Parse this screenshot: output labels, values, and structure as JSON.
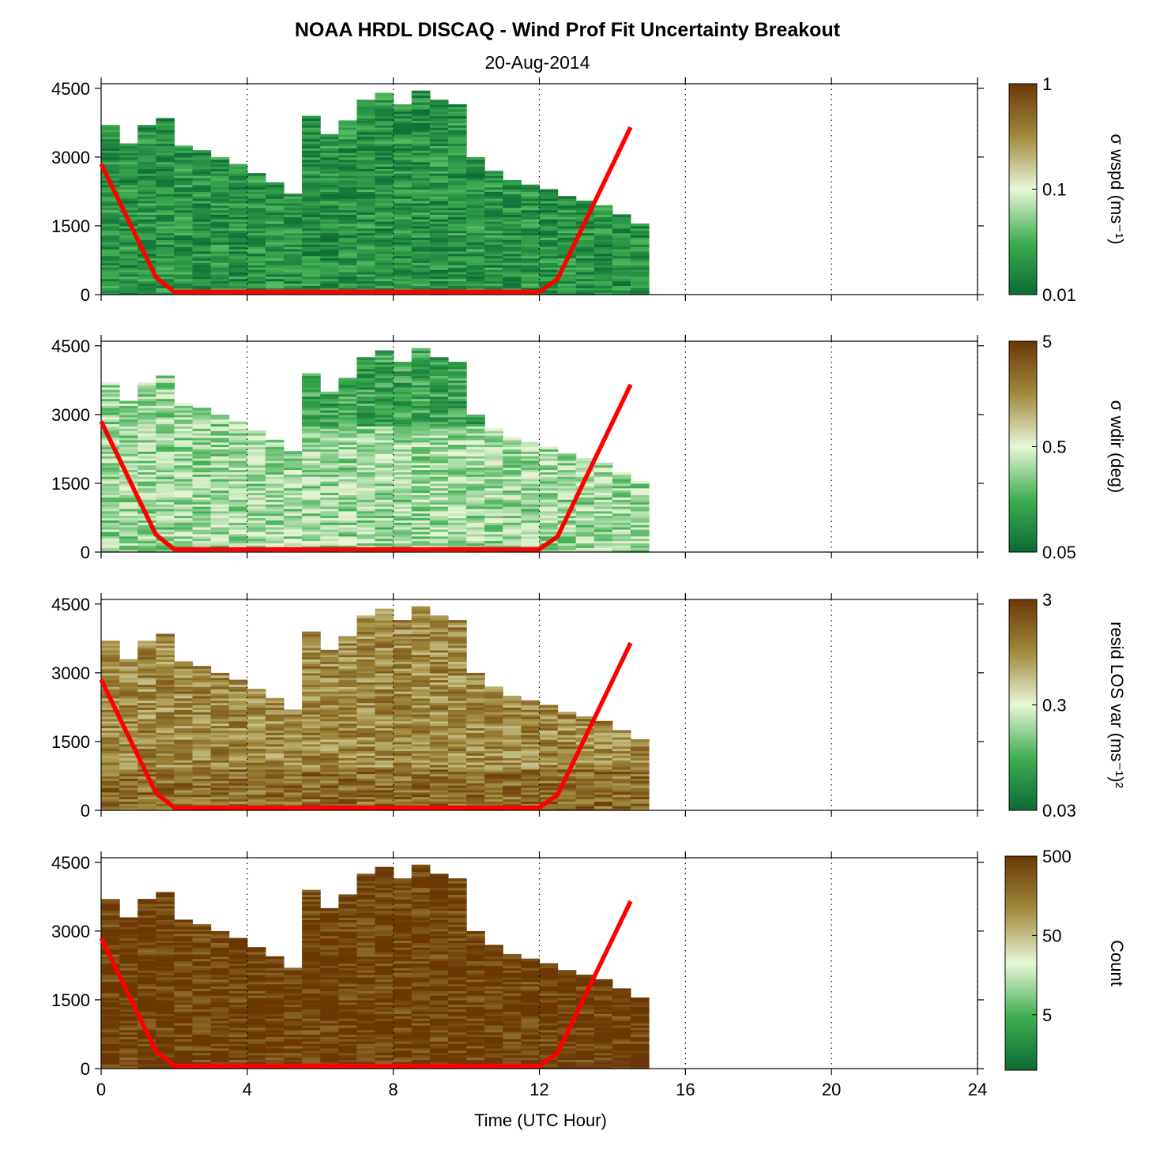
{
  "figure": {
    "title": "NOAA HRDL DISCAQ - Wind Prof Fit Uncertainty Breakout",
    "subtitle": "20-Aug-2014",
    "xlabel": "Time (UTC Hour)"
  },
  "colors": {
    "green_dark": "#0b6b34",
    "green_mid": "#3fae52",
    "pale": "#e8f6d8",
    "olive": "#a08a3c",
    "brown_dark": "#6b3806",
    "boundary_line": "#ff0000",
    "grid": "#000000"
  },
  "chart_data": {
    "type": "heatmap",
    "x_axis": {
      "range": [
        0,
        24
      ],
      "ticks": [
        0,
        4,
        8,
        12,
        16,
        20,
        24
      ],
      "label": "Time (UTC Hour)"
    },
    "y_axis": {
      "range": [
        0,
        4600
      ],
      "ticks": [
        0,
        1500,
        3000,
        4500
      ]
    },
    "vertical_gridlines": [
      4,
      8,
      12,
      16,
      20,
      24
    ],
    "column_tops": [
      [
        0.0,
        3700
      ],
      [
        0.5,
        3300
      ],
      [
        1.0,
        3700
      ],
      [
        1.5,
        3850
      ],
      [
        2.0,
        3250
      ],
      [
        2.5,
        3150
      ],
      [
        3.0,
        3000
      ],
      [
        3.5,
        2850
      ],
      [
        4.0,
        2650
      ],
      [
        4.5,
        2450
      ],
      [
        5.0,
        2200
      ],
      [
        5.5,
        3900
      ],
      [
        6.0,
        3500
      ],
      [
        6.5,
        3800
      ],
      [
        7.0,
        4250
      ],
      [
        7.5,
        4400
      ],
      [
        8.0,
        4150
      ],
      [
        8.5,
        4450
      ],
      [
        9.0,
        4250
      ],
      [
        9.5,
        4150
      ],
      [
        10.0,
        3000
      ],
      [
        10.5,
        2700
      ],
      [
        11.0,
        2500
      ],
      [
        11.5,
        2400
      ],
      [
        12.0,
        2300
      ],
      [
        12.5,
        2150
      ],
      [
        13.0,
        2050
      ],
      [
        13.5,
        1950
      ],
      [
        14.0,
        1750
      ],
      [
        14.5,
        1550
      ]
    ],
    "boundary_layer_height": {
      "name": "",
      "x": [
        0,
        1.5,
        2,
        12,
        12.5,
        14.5
      ],
      "y": [
        2850,
        380,
        60,
        60,
        340,
        3650
      ]
    },
    "panels": [
      {
        "colorbar_label": "σ wspd (ms⁻¹)",
        "scale": "log",
        "range": [
          0.01,
          1
        ],
        "colorbar_ticks": [
          "1",
          "0.1",
          "0.01"
        ],
        "tick_values": [
          1,
          0.1,
          0.01
        ],
        "typical_value": 0.02
      },
      {
        "colorbar_label": "σ wdir (deg)",
        "scale": "log",
        "range": [
          0.05,
          5
        ],
        "colorbar_ticks": [
          "5",
          "0.5",
          "0.05"
        ],
        "tick_values": [
          5,
          0.5,
          0.05
        ],
        "typical_value": 0.3
      },
      {
        "colorbar_label": "resid LOS var (ms⁻¹)²",
        "scale": "log",
        "range": [
          0.03,
          3
        ],
        "colorbar_ticks": [
          "3",
          "0.3",
          "0.03"
        ],
        "tick_values": [
          3,
          0.3,
          0.03
        ],
        "typical_value": 1.0
      },
      {
        "colorbar_label": "Count",
        "scale": "log",
        "range": [
          1,
          500
        ],
        "colorbar_ticks": [
          "500",
          "50",
          "5"
        ],
        "tick_values": [
          500,
          50,
          5
        ],
        "typical_value": 450
      }
    ]
  }
}
